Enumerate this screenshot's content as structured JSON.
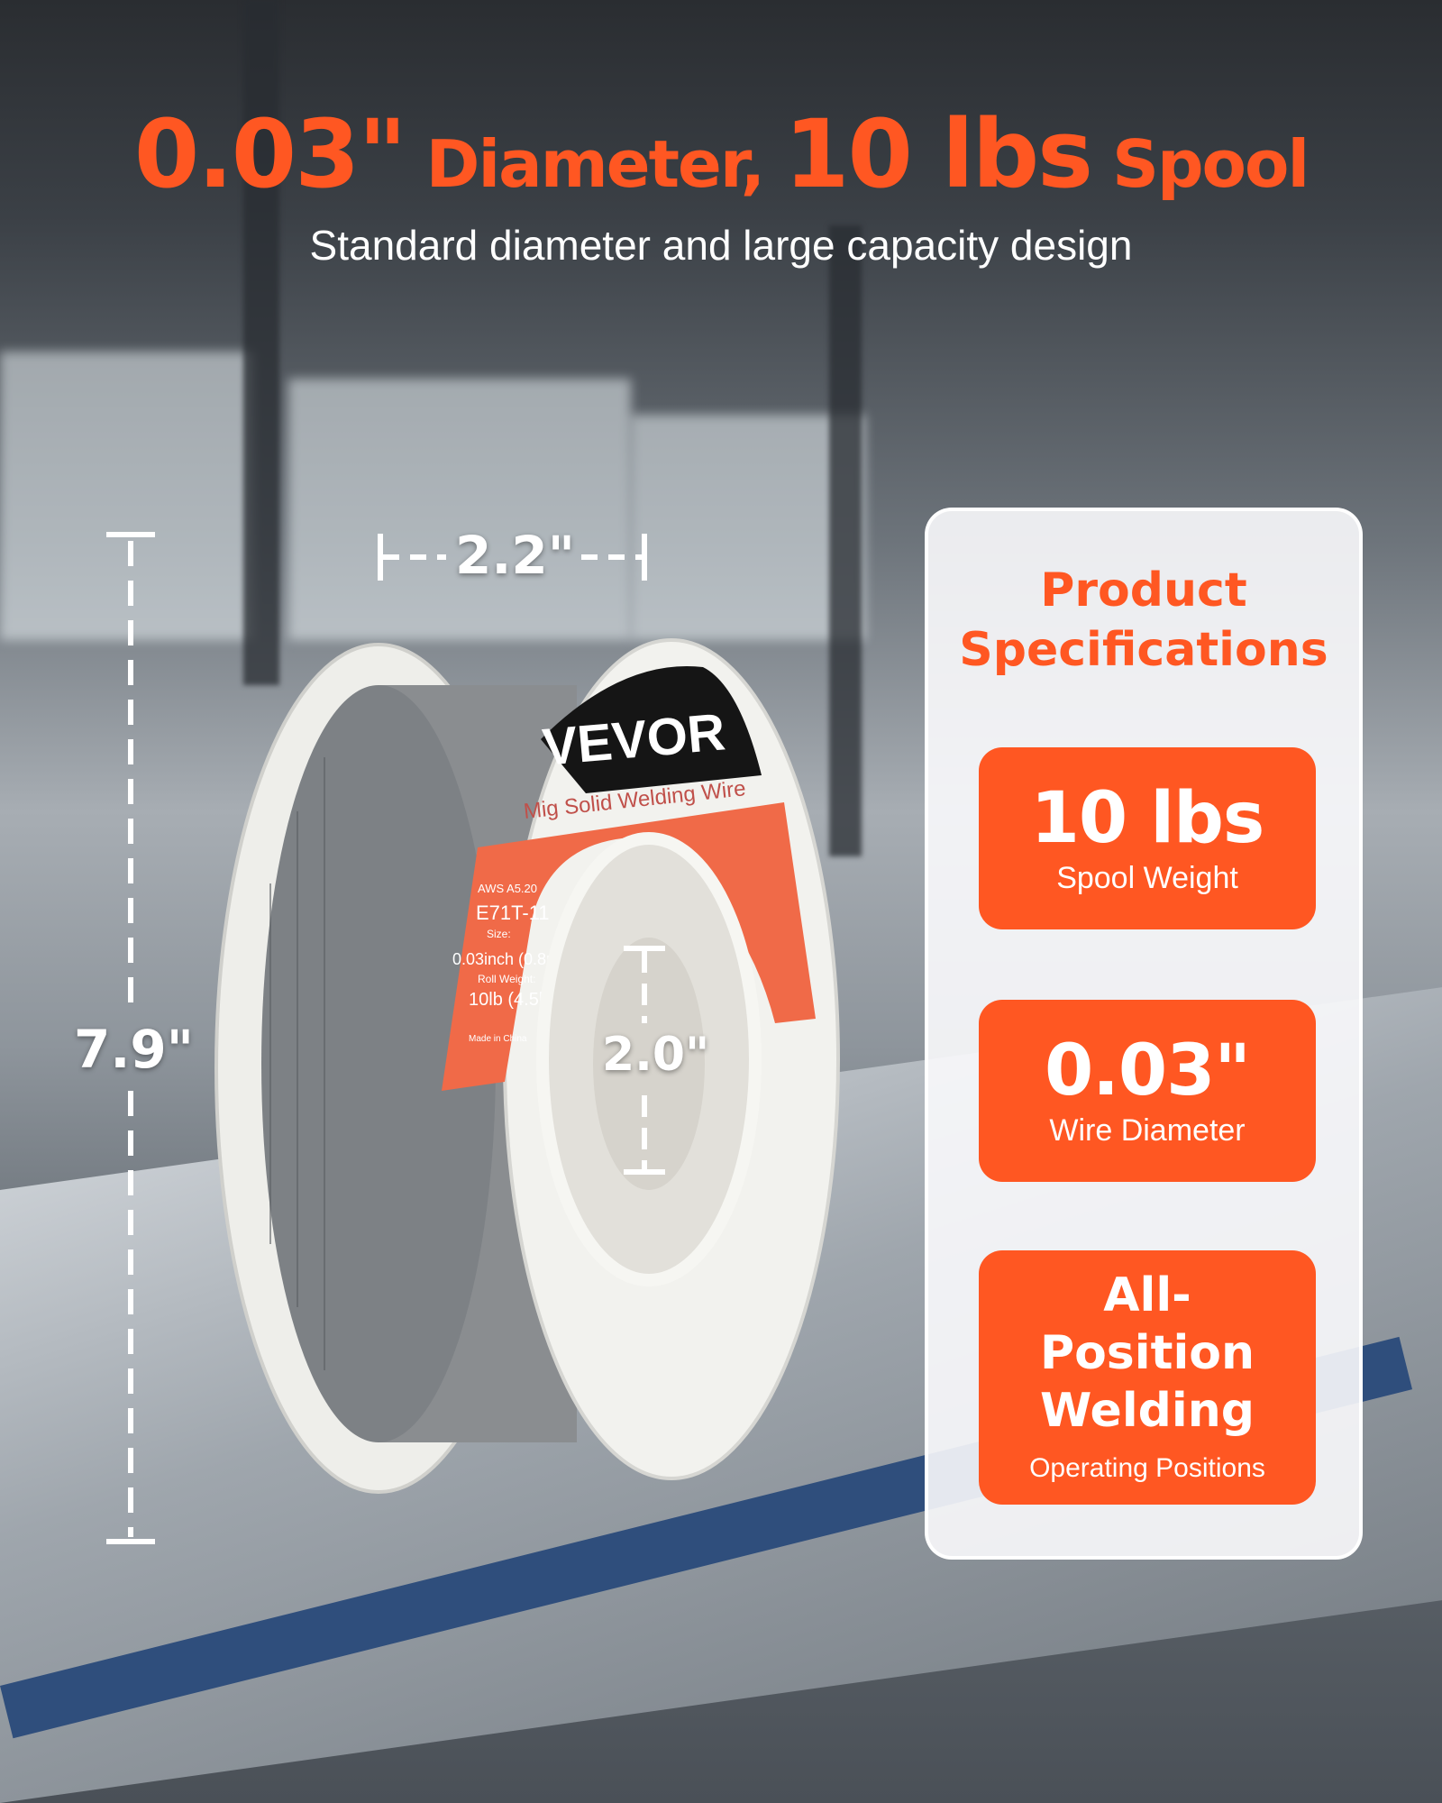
{
  "headline": {
    "part1": "0.03\"",
    "part2": " Diameter, ",
    "part3": "10 lbs",
    "part4": " Spool"
  },
  "subtitle": "Standard diameter and large capacity design",
  "dimensions": {
    "height": "7.9\"",
    "width": "2.2\"",
    "inner": "2.0\""
  },
  "spool_label": {
    "brand": "VEVOR",
    "product": "Mig Solid Welding Wire",
    "standard": "AWS A5.20",
    "class": "E71T-11",
    "size_label": "Size:",
    "size": "0.03inch (0.8mm)",
    "weight_label": "Roll Weight:",
    "weight": "10lb (4.5kg)",
    "made": "Made in China"
  },
  "specs": {
    "title": "Product Specifications",
    "items": [
      {
        "value": "10 lbs",
        "label": "Spool Weight"
      },
      {
        "value": "0.03\"",
        "label": "Wire Diameter"
      },
      {
        "value": "All-Position Welding",
        "label": "Operating Positions"
      }
    ]
  },
  "colors": {
    "accent": "#ff5722",
    "label_orange": "#f06a48"
  }
}
